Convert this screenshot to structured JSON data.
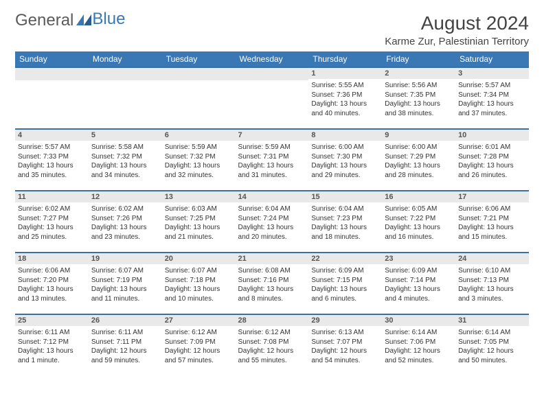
{
  "brand": {
    "part1": "General",
    "part2": "Blue"
  },
  "title": "August 2024",
  "location": "Karme Zur, Palestinian Territory",
  "colors": {
    "header_band": "#3a78b5",
    "daynum_band_bg": "#e9e9e9",
    "rule": "#3a6fa0",
    "text": "#333333",
    "title_text": "#444444"
  },
  "typography": {
    "month_title_fontsize_pt": 21,
    "location_fontsize_pt": 11,
    "weekday_fontsize_pt": 9,
    "cell_fontsize_pt": 7.5
  },
  "weekdays": [
    "Sunday",
    "Monday",
    "Tuesday",
    "Wednesday",
    "Thursday",
    "Friday",
    "Saturday"
  ],
  "weeks": [
    [
      null,
      null,
      null,
      null,
      {
        "n": "1",
        "sunrise": "Sunrise: 5:55 AM",
        "sunset": "Sunset: 7:36 PM",
        "day1": "Daylight: 13 hours",
        "day2": "and 40 minutes."
      },
      {
        "n": "2",
        "sunrise": "Sunrise: 5:56 AM",
        "sunset": "Sunset: 7:35 PM",
        "day1": "Daylight: 13 hours",
        "day2": "and 38 minutes."
      },
      {
        "n": "3",
        "sunrise": "Sunrise: 5:57 AM",
        "sunset": "Sunset: 7:34 PM",
        "day1": "Daylight: 13 hours",
        "day2": "and 37 minutes."
      }
    ],
    [
      {
        "n": "4",
        "sunrise": "Sunrise: 5:57 AM",
        "sunset": "Sunset: 7:33 PM",
        "day1": "Daylight: 13 hours",
        "day2": "and 35 minutes."
      },
      {
        "n": "5",
        "sunrise": "Sunrise: 5:58 AM",
        "sunset": "Sunset: 7:32 PM",
        "day1": "Daylight: 13 hours",
        "day2": "and 34 minutes."
      },
      {
        "n": "6",
        "sunrise": "Sunrise: 5:59 AM",
        "sunset": "Sunset: 7:32 PM",
        "day1": "Daylight: 13 hours",
        "day2": "and 32 minutes."
      },
      {
        "n": "7",
        "sunrise": "Sunrise: 5:59 AM",
        "sunset": "Sunset: 7:31 PM",
        "day1": "Daylight: 13 hours",
        "day2": "and 31 minutes."
      },
      {
        "n": "8",
        "sunrise": "Sunrise: 6:00 AM",
        "sunset": "Sunset: 7:30 PM",
        "day1": "Daylight: 13 hours",
        "day2": "and 29 minutes."
      },
      {
        "n": "9",
        "sunrise": "Sunrise: 6:00 AM",
        "sunset": "Sunset: 7:29 PM",
        "day1": "Daylight: 13 hours",
        "day2": "and 28 minutes."
      },
      {
        "n": "10",
        "sunrise": "Sunrise: 6:01 AM",
        "sunset": "Sunset: 7:28 PM",
        "day1": "Daylight: 13 hours",
        "day2": "and 26 minutes."
      }
    ],
    [
      {
        "n": "11",
        "sunrise": "Sunrise: 6:02 AM",
        "sunset": "Sunset: 7:27 PM",
        "day1": "Daylight: 13 hours",
        "day2": "and 25 minutes."
      },
      {
        "n": "12",
        "sunrise": "Sunrise: 6:02 AM",
        "sunset": "Sunset: 7:26 PM",
        "day1": "Daylight: 13 hours",
        "day2": "and 23 minutes."
      },
      {
        "n": "13",
        "sunrise": "Sunrise: 6:03 AM",
        "sunset": "Sunset: 7:25 PM",
        "day1": "Daylight: 13 hours",
        "day2": "and 21 minutes."
      },
      {
        "n": "14",
        "sunrise": "Sunrise: 6:04 AM",
        "sunset": "Sunset: 7:24 PM",
        "day1": "Daylight: 13 hours",
        "day2": "and 20 minutes."
      },
      {
        "n": "15",
        "sunrise": "Sunrise: 6:04 AM",
        "sunset": "Sunset: 7:23 PM",
        "day1": "Daylight: 13 hours",
        "day2": "and 18 minutes."
      },
      {
        "n": "16",
        "sunrise": "Sunrise: 6:05 AM",
        "sunset": "Sunset: 7:22 PM",
        "day1": "Daylight: 13 hours",
        "day2": "and 16 minutes."
      },
      {
        "n": "17",
        "sunrise": "Sunrise: 6:06 AM",
        "sunset": "Sunset: 7:21 PM",
        "day1": "Daylight: 13 hours",
        "day2": "and 15 minutes."
      }
    ],
    [
      {
        "n": "18",
        "sunrise": "Sunrise: 6:06 AM",
        "sunset": "Sunset: 7:20 PM",
        "day1": "Daylight: 13 hours",
        "day2": "and 13 minutes."
      },
      {
        "n": "19",
        "sunrise": "Sunrise: 6:07 AM",
        "sunset": "Sunset: 7:19 PM",
        "day1": "Daylight: 13 hours",
        "day2": "and 11 minutes."
      },
      {
        "n": "20",
        "sunrise": "Sunrise: 6:07 AM",
        "sunset": "Sunset: 7:18 PM",
        "day1": "Daylight: 13 hours",
        "day2": "and 10 minutes."
      },
      {
        "n": "21",
        "sunrise": "Sunrise: 6:08 AM",
        "sunset": "Sunset: 7:16 PM",
        "day1": "Daylight: 13 hours",
        "day2": "and 8 minutes."
      },
      {
        "n": "22",
        "sunrise": "Sunrise: 6:09 AM",
        "sunset": "Sunset: 7:15 PM",
        "day1": "Daylight: 13 hours",
        "day2": "and 6 minutes."
      },
      {
        "n": "23",
        "sunrise": "Sunrise: 6:09 AM",
        "sunset": "Sunset: 7:14 PM",
        "day1": "Daylight: 13 hours",
        "day2": "and 4 minutes."
      },
      {
        "n": "24",
        "sunrise": "Sunrise: 6:10 AM",
        "sunset": "Sunset: 7:13 PM",
        "day1": "Daylight: 13 hours",
        "day2": "and 3 minutes."
      }
    ],
    [
      {
        "n": "25",
        "sunrise": "Sunrise: 6:11 AM",
        "sunset": "Sunset: 7:12 PM",
        "day1": "Daylight: 13 hours",
        "day2": "and 1 minute."
      },
      {
        "n": "26",
        "sunrise": "Sunrise: 6:11 AM",
        "sunset": "Sunset: 7:11 PM",
        "day1": "Daylight: 12 hours",
        "day2": "and 59 minutes."
      },
      {
        "n": "27",
        "sunrise": "Sunrise: 6:12 AM",
        "sunset": "Sunset: 7:09 PM",
        "day1": "Daylight: 12 hours",
        "day2": "and 57 minutes."
      },
      {
        "n": "28",
        "sunrise": "Sunrise: 6:12 AM",
        "sunset": "Sunset: 7:08 PM",
        "day1": "Daylight: 12 hours",
        "day2": "and 55 minutes."
      },
      {
        "n": "29",
        "sunrise": "Sunrise: 6:13 AM",
        "sunset": "Sunset: 7:07 PM",
        "day1": "Daylight: 12 hours",
        "day2": "and 54 minutes."
      },
      {
        "n": "30",
        "sunrise": "Sunrise: 6:14 AM",
        "sunset": "Sunset: 7:06 PM",
        "day1": "Daylight: 12 hours",
        "day2": "and 52 minutes."
      },
      {
        "n": "31",
        "sunrise": "Sunrise: 6:14 AM",
        "sunset": "Sunset: 7:05 PM",
        "day1": "Daylight: 12 hours",
        "day2": "and 50 minutes."
      }
    ]
  ]
}
